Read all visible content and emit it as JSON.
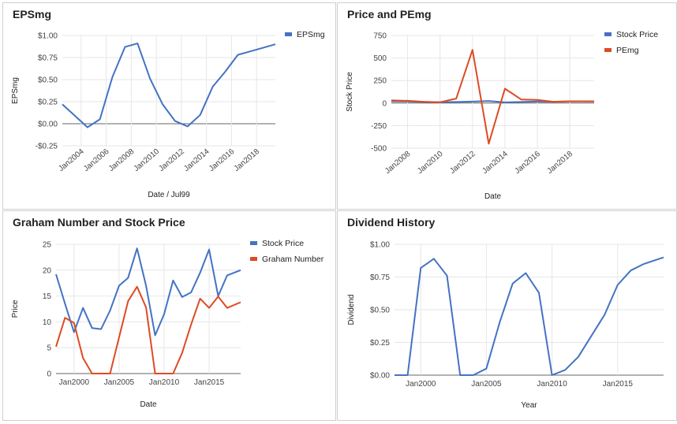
{
  "colors": {
    "blue": "#4472C4",
    "red": "#DD4B23",
    "grid": "#e6e6e6",
    "zero": "#666666"
  },
  "chart_data": [
    {
      "id": "p1",
      "type": "line",
      "title": "EPSmg",
      "xlabel": "Date / Jul99",
      "ylabel": "EPSmg",
      "ylim": [
        -0.25,
        1.0
      ],
      "xlim": [
        2002.5,
        2019.5
      ],
      "yticks": [
        {
          "v": 1.0,
          "label": "$1.00"
        },
        {
          "v": 0.75,
          "label": "$0.75"
        },
        {
          "v": 0.5,
          "label": "$0.50"
        },
        {
          "v": 0.25,
          "label": "$0.25"
        },
        {
          "v": 0.0,
          "label": "$0.00"
        },
        {
          "v": -0.25,
          "label": "-$0.25"
        }
      ],
      "xticks": [
        {
          "v": 2004,
          "label": "Jan2004"
        },
        {
          "v": 2006,
          "label": "Jan2006"
        },
        {
          "v": 2008,
          "label": "Jan2008"
        },
        {
          "v": 2010,
          "label": "Jan2010"
        },
        {
          "v": 2012,
          "label": "Jan2012"
        },
        {
          "v": 2014,
          "label": "Jan2014"
        },
        {
          "v": 2016,
          "label": "Jan2016"
        },
        {
          "v": 2018,
          "label": "Jan2018"
        }
      ],
      "rotated_ticks": true,
      "legend_position": "right",
      "series": [
        {
          "name": "EPSmg",
          "color": "blue",
          "x": [
            2002.5,
            2003.5,
            2004.5,
            2005.5,
            2006.5,
            2007.5,
            2008.5,
            2009.5,
            2010.5,
            2011.5,
            2012.5,
            2013.5,
            2014.5,
            2015.5,
            2016.5,
            2017.5,
            2018.5,
            2019.5
          ],
          "y": [
            0.22,
            0.09,
            -0.04,
            0.05,
            0.53,
            0.87,
            0.91,
            0.51,
            0.22,
            0.03,
            -0.03,
            0.1,
            0.42,
            0.59,
            0.78,
            0.82,
            0.86,
            0.9
          ]
        }
      ]
    },
    {
      "id": "p2",
      "type": "line",
      "title": "Price and PEmg",
      "xlabel": "Date",
      "ylabel": "Stock Price",
      "ylim": [
        -500,
        750
      ],
      "xlim": [
        2007,
        2019.5
      ],
      "yticks": [
        {
          "v": 750,
          "label": "750"
        },
        {
          "v": 500,
          "label": "500"
        },
        {
          "v": 250,
          "label": "250"
        },
        {
          "v": 0,
          "label": "0"
        },
        {
          "v": -250,
          "label": "-250"
        },
        {
          "v": -500,
          "label": "-500"
        }
      ],
      "xticks": [
        {
          "v": 2008,
          "label": "Jan2008"
        },
        {
          "v": 2010,
          "label": "Jan2010"
        },
        {
          "v": 2012,
          "label": "Jan2012"
        },
        {
          "v": 2014,
          "label": "Jan2014"
        },
        {
          "v": 2016,
          "label": "Jan2016"
        },
        {
          "v": 2018,
          "label": "Jan2018"
        }
      ],
      "rotated_ticks": true,
      "legend_position": "right",
      "series": [
        {
          "name": "Stock Price",
          "color": "blue",
          "x": [
            2007,
            2008,
            2009,
            2010,
            2011,
            2012,
            2013,
            2014,
            2015,
            2016,
            2017,
            2018,
            2019.5
          ],
          "y": [
            20,
            18,
            12,
            9,
            12,
            17,
            24,
            8,
            12,
            18,
            15,
            19,
            20
          ]
        },
        {
          "name": "PEmg",
          "color": "red",
          "x": [
            2007,
            2008,
            2009,
            2010,
            2011,
            2012,
            2013,
            2014,
            2015,
            2016,
            2017,
            2018,
            2019.5
          ],
          "y": [
            30,
            25,
            15,
            10,
            50,
            590,
            -450,
            160,
            40,
            35,
            15,
            20,
            18
          ]
        }
      ]
    },
    {
      "id": "p3",
      "type": "line",
      "title": "Graham Number and Stock Price",
      "xlabel": "Date",
      "ylabel": "Price",
      "ylim": [
        0,
        25
      ],
      "xlim": [
        1998,
        2018.5
      ],
      "yticks": [
        {
          "v": 25,
          "label": "25"
        },
        {
          "v": 20,
          "label": "20"
        },
        {
          "v": 15,
          "label": "15"
        },
        {
          "v": 10,
          "label": "10"
        },
        {
          "v": 5,
          "label": "5"
        },
        {
          "v": 0,
          "label": "0"
        }
      ],
      "xticks": [
        {
          "v": 2000,
          "label": "Jan2000"
        },
        {
          "v": 2005,
          "label": "Jan2005"
        },
        {
          "v": 2010,
          "label": "Jan2010"
        },
        {
          "v": 2015,
          "label": "Jan2015"
        }
      ],
      "rotated_ticks": false,
      "legend_position": "right",
      "series": [
        {
          "name": "Stock Price",
          "color": "blue",
          "x": [
            1998,
            1999,
            2000,
            2001,
            2002,
            2003,
            2004,
            2005,
            2006,
            2007,
            2008,
            2009,
            2010,
            2011,
            2012,
            2013,
            2014,
            2015,
            2016,
            2017,
            2018.5
          ],
          "y": [
            19.2,
            13.5,
            8.0,
            12.7,
            8.8,
            8.6,
            12.2,
            17.0,
            18.5,
            24.2,
            17.0,
            7.4,
            11.5,
            18.0,
            14.8,
            15.7,
            19.5,
            24.0,
            15.0,
            19.0,
            20.0
          ]
        },
        {
          "name": "Graham Number",
          "color": "red",
          "x": [
            1998,
            1999,
            2000,
            2001,
            2002,
            2003,
            2004,
            2005,
            2006,
            2007,
            2008,
            2009,
            2010,
            2011,
            2012,
            2013,
            2014,
            2015,
            2016,
            2017,
            2018.5
          ],
          "y": [
            5.2,
            10.8,
            9.8,
            3.0,
            0,
            0,
            0,
            7.0,
            14.0,
            16.8,
            12.8,
            0,
            0,
            0,
            4.0,
            9.5,
            14.5,
            12.7,
            14.9,
            12.7,
            13.8
          ]
        }
      ]
    },
    {
      "id": "p4",
      "type": "line",
      "title": "Dividend History",
      "xlabel": "Year",
      "ylabel": "Dividend",
      "ylim": [
        0,
        1.0
      ],
      "xlim": [
        1998,
        2018.5
      ],
      "yticks": [
        {
          "v": 1.0,
          "label": "$1.00"
        },
        {
          "v": 0.75,
          "label": "$0.75"
        },
        {
          "v": 0.5,
          "label": "$0.50"
        },
        {
          "v": 0.25,
          "label": "$0.25"
        },
        {
          "v": 0.0,
          "label": "$0.00"
        }
      ],
      "xticks": [
        {
          "v": 2000,
          "label": "Jan2000"
        },
        {
          "v": 2005,
          "label": "Jan2005"
        },
        {
          "v": 2010,
          "label": "Jan2010"
        },
        {
          "v": 2015,
          "label": "Jan2015"
        }
      ],
      "rotated_ticks": false,
      "legend_position": "none",
      "series": [
        {
          "name": "Dividend",
          "color": "blue",
          "x": [
            1998,
            1999,
            2000,
            2001,
            2002,
            2003,
            2004,
            2005,
            2006,
            2007,
            2008,
            2009,
            2010,
            2011,
            2012,
            2013,
            2014,
            2015,
            2016,
            2017,
            2018.5
          ],
          "y": [
            0,
            0,
            0.82,
            0.89,
            0.76,
            0,
            0,
            0.05,
            0.4,
            0.7,
            0.78,
            0.63,
            0,
            0.04,
            0.14,
            0.3,
            0.46,
            0.69,
            0.8,
            0.85,
            0.9
          ]
        }
      ]
    }
  ]
}
